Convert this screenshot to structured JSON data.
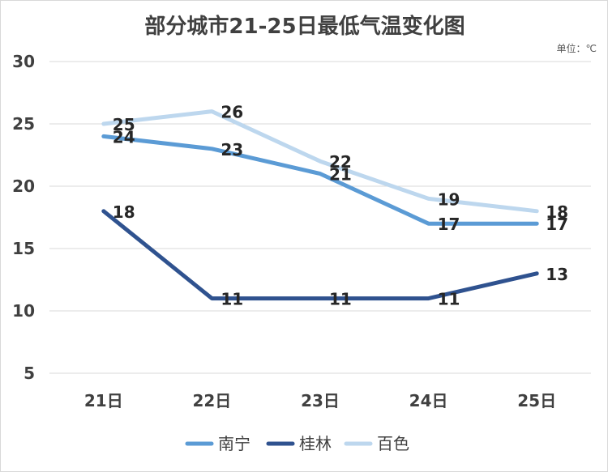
{
  "chart_data": {
    "type": "line",
    "title": "部分城市21-25日最低气温变化图",
    "unit_note": "单位：℃",
    "categories": [
      "21日",
      "22日",
      "23日",
      "24日",
      "25日"
    ],
    "y_ticks": [
      "5",
      "10",
      "15",
      "20",
      "25",
      "30"
    ],
    "ylim": [
      5,
      30
    ],
    "grid": true,
    "legend_position": "bottom",
    "series": [
      {
        "name": "南宁",
        "values": [
          24,
          23,
          21,
          17,
          17
        ],
        "color": "#5b9bd5"
      },
      {
        "name": "桂林",
        "values": [
          18,
          11,
          11,
          11,
          13
        ],
        "color": "#2f528f"
      },
      {
        "name": "百色",
        "values": [
          25,
          26,
          22,
          19,
          18
        ],
        "color": "#bdd7ee"
      }
    ]
  }
}
